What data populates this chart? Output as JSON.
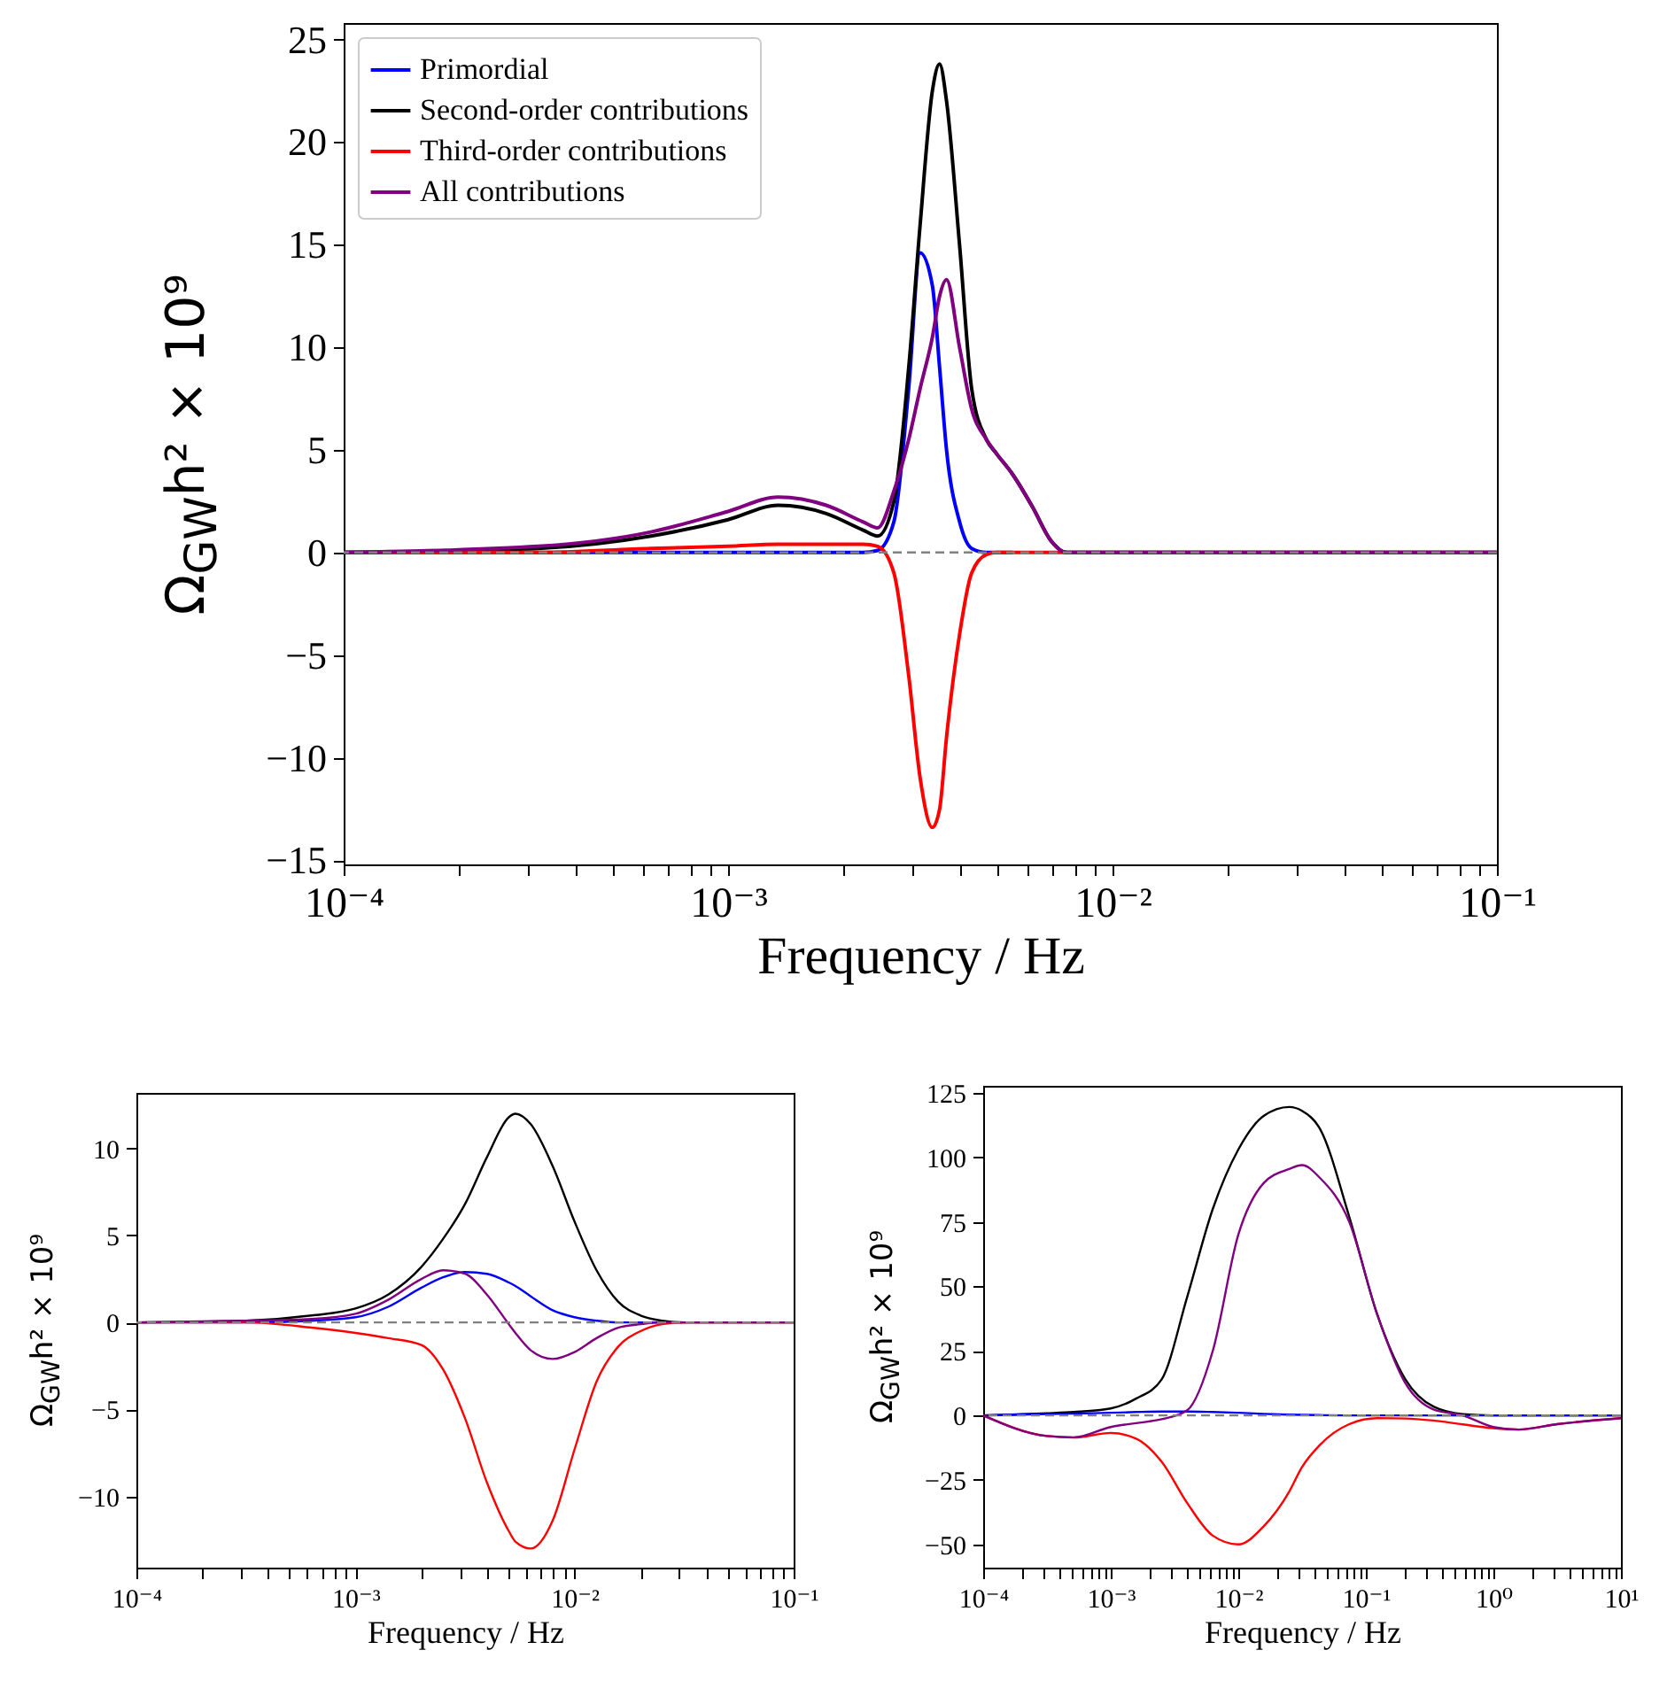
{
  "chart_data": [
    {
      "type": "line",
      "xlabel": "Frequency / Hz",
      "ylabel": "Ω$_{GW}$h² × 10⁹",
      "log": "x",
      "legend": "top left",
      "x": [
        0.0001,
        0.00032,
        0.00063,
        0.001,
        0.00135,
        0.0018,
        0.00224,
        0.00245,
        0.0027,
        0.00295,
        0.00316,
        0.0034,
        0.00355,
        0.0037,
        0.004,
        0.0043,
        0.0047,
        0.005,
        0.0055,
        0.0062,
        0.0069,
        0.0076,
        0.01,
        0.1
      ],
      "series": [
        {
          "name": "Primordial",
          "color": "#0000ff",
          "values": [
            0,
            0,
            0,
            0,
            0,
            0,
            0,
            0.1,
            1.5,
            8,
            14.6,
            13,
            9,
            5,
            1.5,
            0.2,
            0,
            0,
            0,
            null,
            null,
            null,
            null,
            null
          ]
        },
        {
          "name": "Second-order contributions",
          "color": "#000000",
          "values": [
            0,
            0.2,
            0.8,
            1.6,
            2.3,
            1.9,
            1.1,
            0.8,
            2.5,
            9,
            16,
            22.5,
            23.8,
            22,
            15,
            8,
            5.5,
            4.8,
            3.8,
            2.2,
            0.6,
            0,
            0,
            0
          ]
        },
        {
          "name": "Third-order contributions",
          "color": "#ff0000",
          "values": [
            0,
            0,
            0.2,
            0.3,
            0.4,
            0.4,
            0.4,
            0.3,
            -1,
            -6,
            -11,
            -13.4,
            -12.5,
            -9,
            -4,
            -1,
            -0.1,
            0,
            0,
            0,
            0,
            0,
            0,
            0
          ]
        },
        {
          "name": "All contributions",
          "color": "#800080",
          "values": [
            0,
            0.3,
            1,
            2,
            2.7,
            2.3,
            1.5,
            1.2,
            3,
            5.5,
            8,
            10.5,
            12.5,
            13.3,
            10,
            7,
            5.5,
            4.8,
            3.8,
            2.2,
            0.6,
            0,
            0,
            0
          ]
        }
      ],
      "xlim": [
        0.0001,
        0.1
      ],
      "xticks": [
        {
          "value": 0.0001,
          "label": "10⁻⁴"
        },
        {
          "value": 0.0002,
          "label": null
        },
        {
          "value": 0.0003,
          "label": null
        },
        {
          "value": 0.0004,
          "label": null
        },
        {
          "value": 0.0005,
          "label": null
        },
        {
          "value": 0.0006,
          "label": null
        },
        {
          "value": 0.0007,
          "label": null
        },
        {
          "value": 0.0008,
          "label": null
        },
        {
          "value": 0.0009,
          "label": null
        },
        {
          "value": 0.001,
          "label": "10⁻³"
        },
        {
          "value": 0.002,
          "label": null
        },
        {
          "value": 0.003,
          "label": null
        },
        {
          "value": 0.004,
          "label": null
        },
        {
          "value": 0.005,
          "label": null
        },
        {
          "value": 0.006,
          "label": null
        },
        {
          "value": 0.007,
          "label": null
        },
        {
          "value": 0.008,
          "label": null
        },
        {
          "value": 0.009,
          "label": null
        },
        {
          "value": 0.01,
          "label": "10⁻²"
        },
        {
          "value": 0.02,
          "label": null
        },
        {
          "value": 0.03,
          "label": null
        },
        {
          "value": 0.04,
          "label": null
        },
        {
          "value": 0.05,
          "label": null
        },
        {
          "value": 0.06,
          "label": null
        },
        {
          "value": 0.07,
          "label": null
        },
        {
          "value": 0.08,
          "label": null
        },
        {
          "value": 0.09,
          "label": null
        },
        {
          "value": 0.1,
          "label": "10⁻¹"
        }
      ],
      "ylim": [
        -15.2,
        25.8
      ],
      "yticks": [
        -15,
        -10,
        -5,
        0,
        5,
        10,
        15,
        20,
        25
      ],
      "ref_lines": [
        {
          "axis": "y",
          "value": 0,
          "color": "#808080",
          "line_style": "dashed"
        }
      ]
    },
    {
      "type": "line",
      "xlabel": "Frequency / Hz",
      "ylabel": "Ω$_{GW}$h² × 10⁹",
      "log": "x",
      "x": [
        0.0001,
        0.000316,
        0.000631,
        0.001,
        0.00141,
        0.002,
        0.00251,
        0.00316,
        0.00398,
        0.00501,
        0.00537,
        0.00631,
        0.00794,
        0.01,
        0.0126,
        0.0158,
        0.02,
        0.0251,
        0.0316,
        0.1
      ],
      "series": [
        {
          "color": "#0000ff",
          "values": [
            0,
            0,
            0.1,
            0.3,
            0.9,
            2,
            2.6,
            2.9,
            2.8,
            2.3,
            2.1,
            1.5,
            0.7,
            0.3,
            0.1,
            0,
            0,
            0,
            null,
            null
          ]
        },
        {
          "color": "#000000",
          "values": [
            0,
            0.1,
            0.4,
            0.8,
            1.6,
            3.2,
            4.8,
            6.8,
            9.5,
            11.8,
            12,
            11.4,
            9,
            5.8,
            3,
            1.2,
            0.4,
            0.1,
            0,
            0
          ]
        },
        {
          "color": "#ff0000",
          "values": [
            0,
            0,
            -0.3,
            -0.6,
            -0.9,
            -1.3,
            -2.7,
            -5.5,
            -9.2,
            -12,
            -12.6,
            -13,
            -11.4,
            -7.3,
            -3.4,
            -1.4,
            -0.5,
            -0.1,
            0,
            0
          ]
        },
        {
          "color": "#800080",
          "values": [
            0,
            0.1,
            0.2,
            0.5,
            1.3,
            2.5,
            3,
            2.8,
            1.6,
            -0.1,
            -0.6,
            -1.6,
            -2.1,
            -1.7,
            -0.9,
            -0.3,
            -0.1,
            0,
            0,
            0
          ]
        }
      ],
      "xlim": [
        0.0001,
        0.1
      ],
      "xticks": [
        {
          "value": 0.0001,
          "label": "10⁻⁴"
        },
        {
          "value": 0.0002,
          "label": null
        },
        {
          "value": 0.0003,
          "label": null
        },
        {
          "value": 0.0004,
          "label": null
        },
        {
          "value": 0.0005,
          "label": null
        },
        {
          "value": 0.0006,
          "label": null
        },
        {
          "value": 0.0007,
          "label": null
        },
        {
          "value": 0.0008,
          "label": null
        },
        {
          "value": 0.0009,
          "label": null
        },
        {
          "value": 0.001,
          "label": "10⁻³"
        },
        {
          "value": 0.002,
          "label": null
        },
        {
          "value": 0.003,
          "label": null
        },
        {
          "value": 0.004,
          "label": null
        },
        {
          "value": 0.005,
          "label": null
        },
        {
          "value": 0.006,
          "label": null
        },
        {
          "value": 0.007,
          "label": null
        },
        {
          "value": 0.008,
          "label": null
        },
        {
          "value": 0.009,
          "label": null
        },
        {
          "value": 0.01,
          "label": "10⁻²"
        },
        {
          "value": 0.02,
          "label": null
        },
        {
          "value": 0.03,
          "label": null
        },
        {
          "value": 0.04,
          "label": null
        },
        {
          "value": 0.05,
          "label": null
        },
        {
          "value": 0.06,
          "label": null
        },
        {
          "value": 0.07,
          "label": null
        },
        {
          "value": 0.08,
          "label": null
        },
        {
          "value": 0.09,
          "label": null
        },
        {
          "value": 0.1,
          "label": "10⁻¹"
        }
      ],
      "ylim": [
        -14.1,
        13.2
      ],
      "yticks": [
        -10,
        -5,
        0,
        5,
        10
      ],
      "ref_lines": [
        {
          "axis": "y",
          "value": 0,
          "color": "#808080",
          "line_style": "dashed"
        }
      ]
    },
    {
      "type": "line",
      "xlabel": "Frequency / Hz",
      "ylabel": "Ω$_{GW}$h² × 10⁹",
      "log": "x",
      "x": [
        0.0001,
        0.000316,
        0.000513,
        0.001,
        0.00158,
        0.00251,
        0.00398,
        0.00631,
        0.01,
        0.0158,
        0.0251,
        0.0316,
        0.0437,
        0.0741,
        0.123,
        0.204,
        0.339,
        0.575,
        1,
        1.58,
        3.16,
        10
      ],
      "series": [
        {
          "color": "#000000",
          "values": [
            0,
            0.8,
            1.3,
            2.7,
            6.5,
            14,
            46,
            80,
            103,
            116,
            119.5,
            118,
            111,
            77,
            39,
            14,
            3.4,
            0.5,
            0,
            0,
            0,
            0
          ]
        },
        {
          "color": "#0000ff",
          "values": [
            0,
            0.5,
            0.7,
            1,
            1.3,
            1.5,
            1.5,
            1.3,
            1,
            0.6,
            0.3,
            0.2,
            0.1,
            0,
            0,
            0,
            0,
            0,
            0,
            0,
            0,
            0
          ]
        },
        {
          "color": "#ff0000",
          "values": [
            0,
            -8,
            -8.6,
            -6.8,
            -9,
            -18,
            -34,
            -46.6,
            -50,
            -43,
            -29.5,
            -20,
            -11.4,
            -3.4,
            -1.1,
            -1.2,
            -2,
            -3.5,
            -5,
            -5.5,
            -3.4,
            -1.1
          ]
        },
        {
          "color": "#800080",
          "values": [
            0,
            -8,
            -8.5,
            -4.5,
            -3,
            -1.5,
            2,
            25,
            70,
            90,
            95.5,
            97,
            92,
            75,
            39,
            12.5,
            2.3,
            0,
            -4.5,
            -5.5,
            -3.4,
            -1.1
          ]
        }
      ],
      "xlim": [
        0.0001,
        10
      ],
      "xticks": [
        {
          "value": 0.0001,
          "label": "10⁻⁴"
        },
        {
          "value": 0.0002,
          "label": null
        },
        {
          "value": 0.0003,
          "label": null
        },
        {
          "value": 0.0004,
          "label": null
        },
        {
          "value": 0.0005,
          "label": null
        },
        {
          "value": 0.0006,
          "label": null
        },
        {
          "value": 0.0007,
          "label": null
        },
        {
          "value": 0.0008,
          "label": null
        },
        {
          "value": 0.0009,
          "label": null
        },
        {
          "value": 0.001,
          "label": "10⁻³"
        },
        {
          "value": 0.002,
          "label": null
        },
        {
          "value": 0.003,
          "label": null
        },
        {
          "value": 0.004,
          "label": null
        },
        {
          "value": 0.005,
          "label": null
        },
        {
          "value": 0.006,
          "label": null
        },
        {
          "value": 0.007,
          "label": null
        },
        {
          "value": 0.008,
          "label": null
        },
        {
          "value": 0.009,
          "label": null
        },
        {
          "value": 0.01,
          "label": "10⁻²"
        },
        {
          "value": 0.02,
          "label": null
        },
        {
          "value": 0.03,
          "label": null
        },
        {
          "value": 0.04,
          "label": null
        },
        {
          "value": 0.05,
          "label": null
        },
        {
          "value": 0.06,
          "label": null
        },
        {
          "value": 0.07,
          "label": null
        },
        {
          "value": 0.08,
          "label": null
        },
        {
          "value": 0.09,
          "label": null
        },
        {
          "value": 0.1,
          "label": "10⁻¹"
        },
        {
          "value": 0.2,
          "label": null
        },
        {
          "value": 0.3,
          "label": null
        },
        {
          "value": 0.4,
          "label": null
        },
        {
          "value": 0.5,
          "label": null
        },
        {
          "value": 0.6,
          "label": null
        },
        {
          "value": 0.7,
          "label": null
        },
        {
          "value": 0.8,
          "label": null
        },
        {
          "value": 0.9,
          "label": null
        },
        {
          "value": 1,
          "label": "10⁰"
        },
        {
          "value": 2,
          "label": null
        },
        {
          "value": 3,
          "label": null
        },
        {
          "value": 4,
          "label": null
        },
        {
          "value": 5,
          "label": null
        },
        {
          "value": 6,
          "label": null
        },
        {
          "value": 7,
          "label": null
        },
        {
          "value": 8,
          "label": null
        },
        {
          "value": 9,
          "label": null
        },
        {
          "value": 10,
          "label": "10¹"
        }
      ],
      "ylim": [
        -59,
        127.7
      ],
      "yticks": [
        -50,
        -25,
        0,
        25,
        50,
        75,
        100,
        125
      ],
      "ref_lines": [
        {
          "axis": "y",
          "value": 0,
          "color": "#808080",
          "line_style": "dashed"
        }
      ]
    }
  ]
}
